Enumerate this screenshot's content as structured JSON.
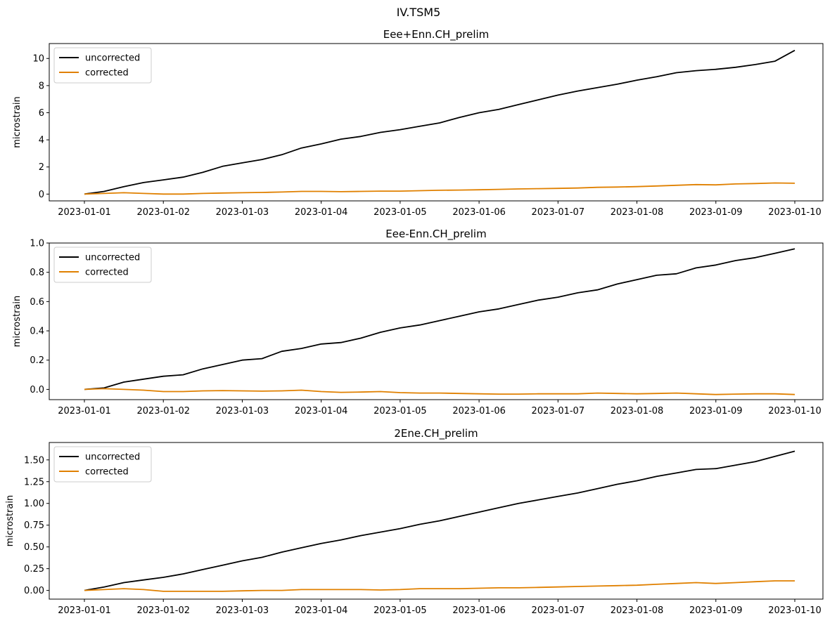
{
  "figure": {
    "suptitle": "IV.TSM5"
  },
  "chart_data": [
    {
      "type": "line",
      "title": "Eee+Enn.CH_prelim",
      "xlabel": "",
      "ylabel": "microstrain",
      "x_ticks": [
        "2023-01-01",
        "2023-01-02",
        "2023-01-03",
        "2023-01-04",
        "2023-01-05",
        "2023-01-06",
        "2023-01-07",
        "2023-01-08",
        "2023-01-09",
        "2023-01-10"
      ],
      "x": [
        0,
        0.25,
        0.5,
        0.75,
        1,
        1.25,
        1.5,
        1.75,
        2,
        2.25,
        2.5,
        2.75,
        3,
        3.25,
        3.5,
        3.75,
        4,
        4.25,
        4.5,
        4.75,
        5,
        5.25,
        5.5,
        5.75,
        6,
        6.25,
        6.5,
        6.75,
        7,
        7.25,
        7.5,
        7.75,
        8,
        8.25,
        8.5,
        8.75,
        9
      ],
      "x_unit": "days since 2023-01-01",
      "ylim": [
        -0.5,
        11.1
      ],
      "y_ticks": [
        "0",
        "2",
        "4",
        "6",
        "8",
        "10"
      ],
      "y_tick_values": [
        0,
        2,
        4,
        6,
        8,
        10
      ],
      "legend": "top-left",
      "grid": false,
      "series": [
        {
          "name": "uncorrected",
          "color": "#000000",
          "values": [
            0,
            0.2,
            0.55,
            0.85,
            1.05,
            1.25,
            1.6,
            2.05,
            2.3,
            2.55,
            2.9,
            3.4,
            3.7,
            4.05,
            4.25,
            4.55,
            4.75,
            5.0,
            5.25,
            5.65,
            6.0,
            6.25,
            6.6,
            6.95,
            7.3,
            7.6,
            7.85,
            8.1,
            8.4,
            8.65,
            8.95,
            9.1,
            9.2,
            9.35,
            9.55,
            9.8,
            10.6
          ]
        },
        {
          "name": "corrected",
          "color": "#e08000",
          "values": [
            0,
            0.05,
            0.1,
            0.05,
            0.0,
            0.0,
            0.05,
            0.08,
            0.1,
            0.12,
            0.15,
            0.2,
            0.2,
            0.18,
            0.2,
            0.22,
            0.22,
            0.25,
            0.28,
            0.3,
            0.32,
            0.35,
            0.38,
            0.4,
            0.42,
            0.45,
            0.5,
            0.52,
            0.55,
            0.6,
            0.65,
            0.7,
            0.68,
            0.75,
            0.78,
            0.82,
            0.8
          ]
        }
      ]
    },
    {
      "type": "line",
      "title": "Eee-Enn.CH_prelim",
      "xlabel": "",
      "ylabel": "microstrain",
      "x_ticks": [
        "2023-01-01",
        "2023-01-02",
        "2023-01-03",
        "2023-01-04",
        "2023-01-05",
        "2023-01-06",
        "2023-01-07",
        "2023-01-08",
        "2023-01-09",
        "2023-01-10"
      ],
      "x": [
        0,
        0.25,
        0.5,
        0.75,
        1,
        1.25,
        1.5,
        1.75,
        2,
        2.25,
        2.5,
        2.75,
        3,
        3.25,
        3.5,
        3.75,
        4,
        4.25,
        4.5,
        4.75,
        5,
        5.25,
        5.5,
        5.75,
        6,
        6.25,
        6.5,
        6.75,
        7,
        7.25,
        7.5,
        7.75,
        8,
        8.25,
        8.5,
        8.75,
        9
      ],
      "x_unit": "days since 2023-01-01",
      "ylim": [
        -0.07,
        1.0
      ],
      "y_ticks": [
        "0.0",
        "0.2",
        "0.4",
        "0.6",
        "0.8",
        "1.0"
      ],
      "y_tick_values": [
        0,
        0.2,
        0.4,
        0.6,
        0.8,
        1.0
      ],
      "legend": "top-left",
      "grid": false,
      "series": [
        {
          "name": "uncorrected",
          "color": "#000000",
          "values": [
            0,
            0.01,
            0.05,
            0.07,
            0.09,
            0.1,
            0.14,
            0.17,
            0.2,
            0.21,
            0.26,
            0.28,
            0.31,
            0.32,
            0.35,
            0.39,
            0.42,
            0.44,
            0.47,
            0.5,
            0.53,
            0.55,
            0.58,
            0.61,
            0.63,
            0.66,
            0.68,
            0.72,
            0.75,
            0.78,
            0.79,
            0.83,
            0.85,
            0.88,
            0.9,
            0.93,
            0.96
          ]
        },
        {
          "name": "corrected",
          "color": "#e08000",
          "values": [
            0,
            0.005,
            0.0,
            -0.005,
            -0.015,
            -0.015,
            -0.01,
            -0.008,
            -0.01,
            -0.012,
            -0.01,
            -0.005,
            -0.015,
            -0.02,
            -0.018,
            -0.015,
            -0.022,
            -0.025,
            -0.025,
            -0.028,
            -0.03,
            -0.032,
            -0.032,
            -0.03,
            -0.03,
            -0.03,
            -0.025,
            -0.028,
            -0.03,
            -0.028,
            -0.025,
            -0.03,
            -0.035,
            -0.032,
            -0.03,
            -0.03,
            -0.035
          ]
        }
      ]
    },
    {
      "type": "line",
      "title": "2Ene.CH_prelim",
      "xlabel": "",
      "ylabel": "microstrain",
      "x_ticks": [
        "2023-01-01",
        "2023-01-02",
        "2023-01-03",
        "2023-01-04",
        "2023-01-05",
        "2023-01-06",
        "2023-01-07",
        "2023-01-08",
        "2023-01-09",
        "2023-01-10"
      ],
      "x": [
        0,
        0.25,
        0.5,
        0.75,
        1,
        1.25,
        1.5,
        1.75,
        2,
        2.25,
        2.5,
        2.75,
        3,
        3.25,
        3.5,
        3.75,
        4,
        4.25,
        4.5,
        4.75,
        5,
        5.25,
        5.5,
        5.75,
        6,
        6.25,
        6.5,
        6.75,
        7,
        7.25,
        7.5,
        7.75,
        8,
        8.25,
        8.5,
        8.75,
        9
      ],
      "x_unit": "days since 2023-01-01",
      "ylim": [
        -0.1,
        1.7
      ],
      "y_ticks": [
        "0.00",
        "0.25",
        "0.50",
        "0.75",
        "1.00",
        "1.25",
        "1.50"
      ],
      "y_tick_values": [
        0,
        0.25,
        0.5,
        0.75,
        1.0,
        1.25,
        1.5
      ],
      "legend": "top-left",
      "grid": false,
      "series": [
        {
          "name": "uncorrected",
          "color": "#000000",
          "values": [
            0,
            0.04,
            0.09,
            0.12,
            0.15,
            0.19,
            0.24,
            0.29,
            0.34,
            0.38,
            0.44,
            0.49,
            0.54,
            0.58,
            0.63,
            0.67,
            0.71,
            0.76,
            0.8,
            0.85,
            0.9,
            0.95,
            1.0,
            1.04,
            1.08,
            1.12,
            1.17,
            1.22,
            1.26,
            1.31,
            1.35,
            1.39,
            1.4,
            1.44,
            1.48,
            1.54,
            1.6
          ]
        },
        {
          "name": "corrected",
          "color": "#e08000",
          "values": [
            0,
            0.01,
            0.02,
            0.01,
            -0.01,
            -0.01,
            -0.01,
            -0.01,
            -0.005,
            0.0,
            0.0,
            0.01,
            0.01,
            0.01,
            0.01,
            0.005,
            0.01,
            0.02,
            0.02,
            0.02,
            0.025,
            0.03,
            0.03,
            0.035,
            0.04,
            0.045,
            0.05,
            0.055,
            0.06,
            0.07,
            0.08,
            0.09,
            0.08,
            0.09,
            0.1,
            0.11,
            0.11
          ]
        }
      ]
    }
  ]
}
